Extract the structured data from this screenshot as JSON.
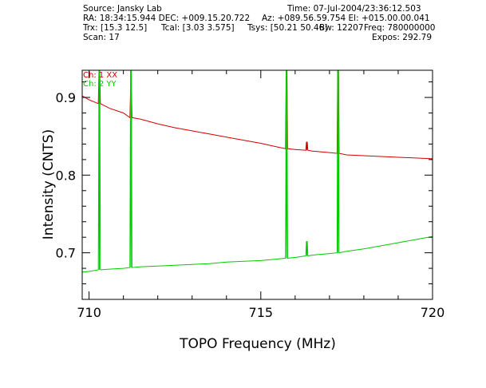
{
  "header": {
    "source": "Source: Jansky Lab",
    "time": "Time: 07-Jul-2004/23:36:12.503",
    "ra_dec": "RA: 18:34:15.944 DEC: +009.15.20.722",
    "az_el": "Az: +089.56.59.754 El: +015.00.00.041",
    "trx": "Trx: [15.3 12.5]",
    "tcal": "Tcal: [3.03 3.575]",
    "tsys": "Tsys: [50.21 50.46]",
    "bw": "Bw: 12207",
    "freq": "Freq: 780000000",
    "scan": "Scan: 17",
    "expos": "Expos: 292.79"
  },
  "chart_data": {
    "type": "line",
    "xlabel": "TOPO Frequency (MHz)",
    "ylabel": "Intensity (CNTS)",
    "xlim": [
      709.8,
      720.0
    ],
    "ylim": [
      0.64,
      0.935
    ],
    "xticks": [
      710,
      715,
      720
    ],
    "yticks": [
      0.7,
      0.8,
      0.9
    ],
    "grid": false,
    "legend_position": "top-left",
    "series": [
      {
        "name": "Ch: 1 XX",
        "color": "#d40000",
        "x": [
          709.8,
          710.0,
          710.3,
          710.6,
          711.0,
          711.22,
          711.5,
          712.0,
          712.5,
          713.0,
          713.5,
          714.0,
          714.5,
          715.0,
          715.5,
          715.75,
          716.0,
          716.34,
          716.5,
          717.0,
          717.25,
          717.5,
          718.0,
          718.5,
          719.0,
          719.5,
          720.0
        ],
        "y": [
          0.902,
          0.897,
          0.892,
          0.886,
          0.88,
          0.874,
          0.872,
          0.866,
          0.861,
          0.857,
          0.853,
          0.849,
          0.845,
          0.841,
          0.836,
          0.834,
          0.833,
          0.832,
          0.831,
          0.829,
          0.828,
          0.826,
          0.825,
          0.824,
          0.823,
          0.822,
          0.821
        ]
      },
      {
        "name": "Ch: 2 YY",
        "color": "#00cc00",
        "x": [
          709.8,
          710.0,
          710.3,
          710.6,
          711.0,
          711.22,
          711.5,
          712.0,
          712.5,
          713.0,
          713.5,
          714.0,
          714.5,
          715.0,
          715.5,
          715.75,
          716.0,
          716.34,
          716.5,
          717.0,
          717.25,
          717.5,
          718.0,
          718.5,
          719.0,
          719.5,
          720.0
        ],
        "y": [
          0.675,
          0.676,
          0.678,
          0.679,
          0.68,
          0.681,
          0.682,
          0.683,
          0.684,
          0.685,
          0.686,
          0.688,
          0.689,
          0.69,
          0.692,
          0.693,
          0.694,
          0.696,
          0.697,
          0.699,
          0.7,
          0.702,
          0.705,
          0.709,
          0.713,
          0.717,
          0.721
        ]
      }
    ],
    "spikes": [
      {
        "series": 0,
        "x": 710.3,
        "peak": 0.935
      },
      {
        "series": 0,
        "x": 711.22,
        "peak": 0.91
      },
      {
        "series": 0,
        "x": 715.75,
        "peak": 0.935
      },
      {
        "series": 0,
        "x": 716.34,
        "peak": 0.843
      },
      {
        "series": 0,
        "x": 717.25,
        "peak": 0.935
      },
      {
        "series": 1,
        "x": 710.3,
        "peak": 0.935
      },
      {
        "series": 1,
        "x": 711.22,
        "peak": 0.935
      },
      {
        "series": 1,
        "x": 715.75,
        "peak": 0.935
      },
      {
        "series": 1,
        "x": 716.34,
        "peak": 0.715
      },
      {
        "series": 1,
        "x": 717.25,
        "peak": 0.935
      }
    ]
  }
}
